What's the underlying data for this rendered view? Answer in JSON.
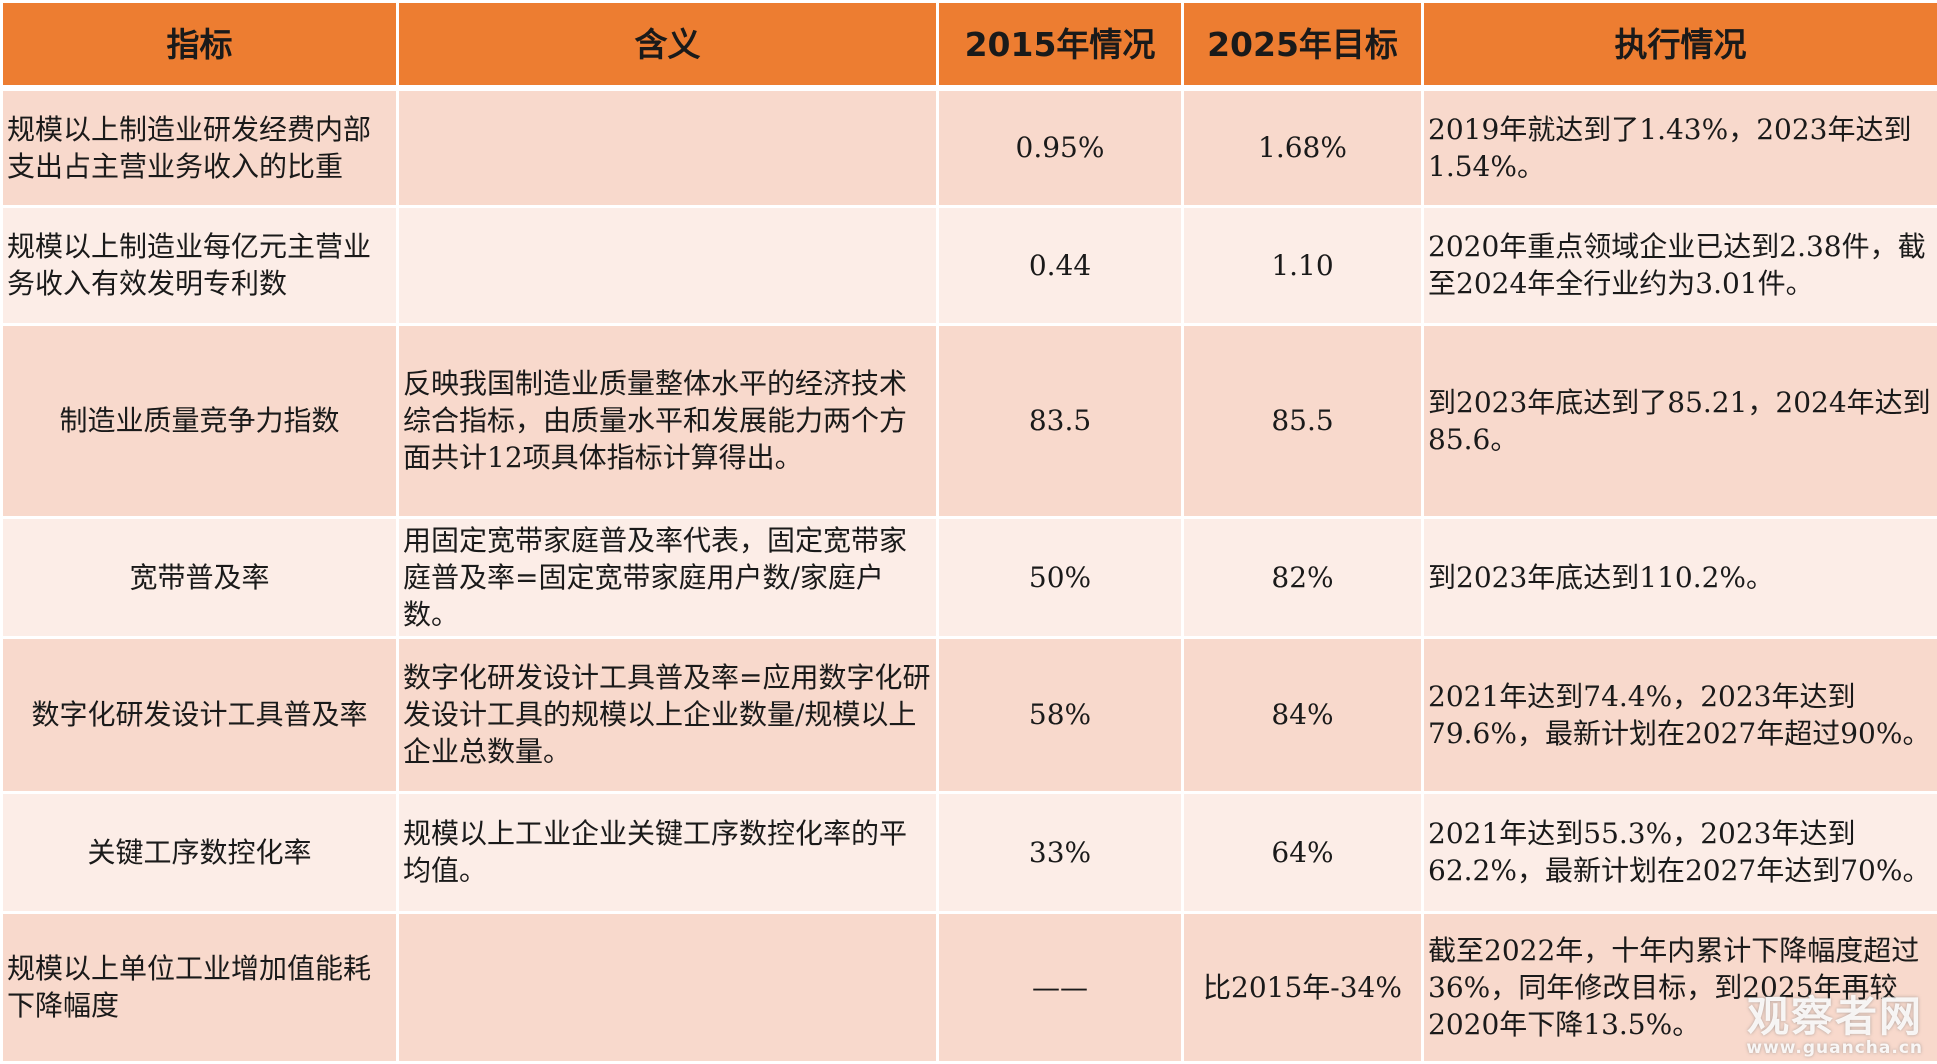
{
  "colors": {
    "header_bg": "#ed7d31",
    "row_odd_bg": "#f8d9cc",
    "row_even_bg": "#fcede7",
    "text": "#1a1a1a"
  },
  "headers": [
    "指标",
    "含义",
    "2015年情况",
    "2025年目标",
    "执行情况"
  ],
  "rows": [
    {
      "indicator": "规模以上制造业研发经费内部支出占主营业务收入的比重",
      "meaning": "",
      "v2015": "0.95%",
      "v2025": "1.68%",
      "status": "2019年就达到了1.43%，2023年达到1.54%。"
    },
    {
      "indicator": "规模以上制造业每亿元主营业务收入有效发明专利数",
      "meaning": "",
      "v2015": "0.44",
      "v2025": "1.10",
      "status": "2020年重点领域企业已达到2.38件，截至2024年全行业约为3.01件。"
    },
    {
      "indicator": "制造业质量竞争力指数",
      "meaning": "反映我国制造业质量整体水平的经济技术综合指标，由质量水平和发展能力两个方面共计12项具体指标计算得出。",
      "v2015": "83.5",
      "v2025": "85.5",
      "status": "到2023年底达到了85.21，2024年达到85.6。"
    },
    {
      "indicator": "宽带普及率",
      "meaning": "用固定宽带家庭普及率代表，固定宽带家庭普及率=固定宽带家庭用户数/家庭户数。",
      "v2015": "50%",
      "v2025": "82%",
      "status": "到2023年底达到110.2%。"
    },
    {
      "indicator": "数字化研发设计工具普及率",
      "meaning": "数字化研发设计工具普及率=应用数字化研发设计工具的规模以上企业数量/规模以上企业总数量。",
      "v2015": "58%",
      "v2025": "84%",
      "status": "2021年达到74.4%，2023年达到79.6%，最新计划在2027年超过90%。"
    },
    {
      "indicator": "关键工序数控化率",
      "meaning": "规模以上工业企业关键工序数控化率的平均值。",
      "v2015": "33%",
      "v2025": "64%",
      "status": "2021年达到55.3%，2023年达到62.2%，最新计划在2027年达到70%。"
    },
    {
      "indicator": "规模以上单位工业增加值能耗下降幅度",
      "meaning": "",
      "v2015": "——",
      "v2025": "比2015年-34%",
      "status": "截至2022年，十年内累计下降幅度超过36%，同年修改目标，到2025年再较2020年下降13.5%。"
    }
  ],
  "watermark": {
    "main": "观察者网",
    "url": "www.guancha.cn"
  }
}
